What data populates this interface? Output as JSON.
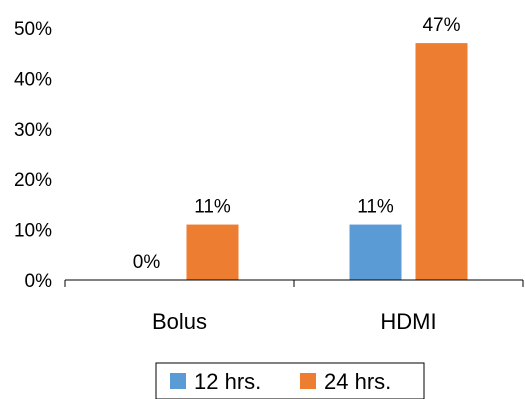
{
  "chart_data": {
    "type": "bar",
    "categories": [
      "Bolus",
      "HDMI"
    ],
    "series": [
      {
        "name": "12 hrs.",
        "values": [
          0,
          11
        ],
        "labels": [
          "0%",
          "11%"
        ],
        "color": "#5b9bd5"
      },
      {
        "name": "24 hrs.",
        "values": [
          11,
          47
        ],
        "labels": [
          "11%",
          "47%"
        ],
        "color": "#ed7d31"
      }
    ],
    "yticks": [
      "0%",
      "10%",
      "20%",
      "30%",
      "40%",
      "50%"
    ],
    "ylim": [
      0,
      50
    ],
    "grid": false,
    "legend_position": "bottom",
    "title": "",
    "xlabel": "",
    "ylabel": ""
  }
}
